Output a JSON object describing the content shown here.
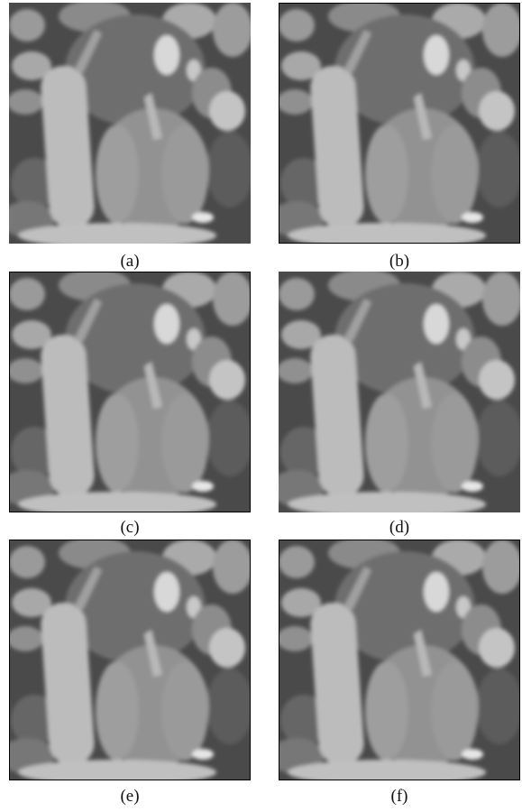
{
  "figure": {
    "captions": [
      "(a)",
      "(b)",
      "(c)",
      "(d)",
      "(e)",
      "(f)"
    ]
  }
}
